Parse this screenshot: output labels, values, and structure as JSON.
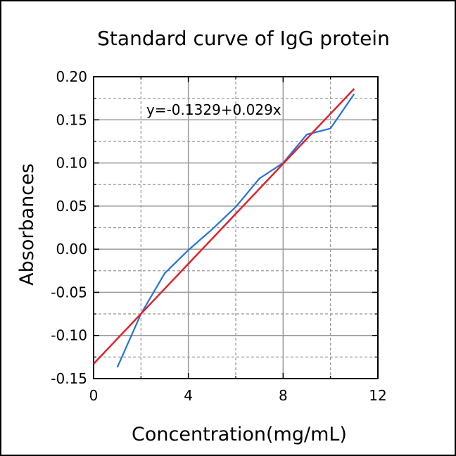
{
  "chart_data": {
    "type": "line",
    "title": "Standard curve of IgG protein",
    "xlabel": "Concentration(mg/mL)",
    "ylabel": "Absorbances",
    "xlim": [
      0,
      12
    ],
    "ylim": [
      -0.15,
      0.2
    ],
    "x_ticks": [
      0,
      4,
      8,
      12
    ],
    "x_tick_labels": [
      "0",
      "4",
      "8",
      "12"
    ],
    "y_ticks": [
      -0.15,
      -0.1,
      -0.05,
      0.0,
      0.05,
      0.1,
      0.15,
      0.2
    ],
    "y_tick_labels": [
      "-0.15",
      "-0.10",
      "-0.05",
      "0.00",
      "0.05",
      "0.10",
      "0.15",
      "0.20"
    ],
    "grid": true,
    "annotation": "y=-0.1329+0.029x",
    "series": [
      {
        "color": "#2672d6",
        "x": [
          1,
          2,
          3,
          4,
          5,
          6,
          7,
          8,
          9,
          10,
          11
        ],
        "y": [
          -0.137,
          -0.075,
          -0.028,
          -0.001,
          0.023,
          0.049,
          0.082,
          0.1,
          0.133,
          0.14,
          0.18
        ]
      },
      {
        "color": "#e0232a",
        "fit": {
          "intercept": -0.1329,
          "slope": 0.029
        },
        "x": [
          0,
          11
        ],
        "y": [
          -0.1329,
          0.1861
        ]
      }
    ]
  }
}
